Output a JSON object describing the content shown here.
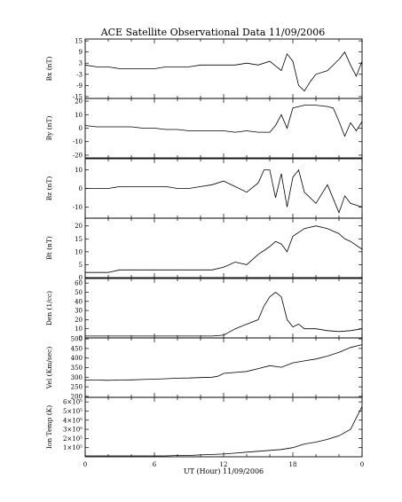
{
  "chart_data": {
    "type": "line",
    "title": "ACE Satellite Observational Data   11/09/2006",
    "xlabel": "UT (Hour)  11/09/2006",
    "x_ticks": [
      "0",
      "6",
      "12",
      "18",
      "0"
    ],
    "xlim": [
      0,
      24
    ],
    "grid": false,
    "panels": [
      {
        "name": "Bx (nT)",
        "ylabel": "Bx (nT)",
        "ylim": [
          -16,
          16
        ],
        "y_ticks": [
          15,
          9,
          3,
          -3,
          -9,
          -15
        ],
        "y_tick_labels": [
          "15",
          "9",
          "3",
          "-3",
          "-9",
          "-15"
        ],
        "x": [
          0,
          1,
          2,
          3,
          4,
          5,
          6,
          7,
          8,
          9,
          10,
          11,
          12,
          13,
          14,
          15,
          16,
          17,
          17.5,
          18,
          18.5,
          19,
          19.5,
          20,
          21,
          22,
          22.5,
          23,
          23.5,
          24
        ],
        "values": [
          2,
          1,
          1,
          0,
          0,
          0,
          0,
          1,
          1,
          1,
          2,
          2,
          2,
          2,
          3,
          2,
          4,
          -1,
          8,
          4,
          -9,
          -12,
          -7,
          -3,
          -1,
          5,
          9,
          2,
          -4,
          4
        ]
      },
      {
        "name": "By (nT)",
        "ylabel": "By (nT)",
        "ylim": [
          -22,
          22
        ],
        "y_ticks": [
          20,
          10,
          0,
          -10,
          -20
        ],
        "y_tick_labels": [
          "20",
          "10",
          "0",
          "-10",
          "-20"
        ],
        "x": [
          0,
          1,
          2,
          3,
          4,
          5,
          6,
          7,
          8,
          9,
          10,
          11,
          12,
          13,
          14,
          15,
          16,
          16.5,
          17,
          17.5,
          18,
          19,
          20,
          21,
          21.5,
          22,
          22.5,
          23,
          23.5,
          24
        ],
        "values": [
          2,
          1,
          1,
          1,
          1,
          0,
          0,
          -1,
          -1,
          -2,
          -2,
          -2,
          -2,
          -3,
          -2,
          -3,
          -3,
          2,
          10,
          0,
          15,
          17,
          17,
          16,
          15,
          5,
          -6,
          4,
          -2,
          5
        ]
      },
      {
        "name": "Bz (nT)",
        "ylabel": "Bz (nT)",
        "ylim": [
          -16,
          16
        ],
        "y_ticks": [
          10,
          0,
          -10
        ],
        "y_tick_labels": [
          "10",
          "0",
          "-10"
        ],
        "x": [
          0,
          1,
          2,
          3,
          4,
          5,
          6,
          7,
          8,
          9,
          10,
          11,
          12,
          13,
          14,
          15,
          15.5,
          16,
          16.5,
          17,
          17.5,
          18,
          18.5,
          19,
          20,
          21,
          22,
          22.5,
          23,
          24
        ],
        "values": [
          0,
          0,
          0,
          1,
          1,
          1,
          1,
          1,
          0,
          0,
          1,
          2,
          4,
          1,
          -2,
          3,
          10,
          10,
          -5,
          8,
          -10,
          6,
          10,
          -2,
          -8,
          2,
          -13,
          -4,
          -8,
          -10
        ]
      },
      {
        "name": "Bt (nT)",
        "ylabel": "Bt (nT)",
        "ylim": [
          0,
          23
        ],
        "y_ticks": [
          20,
          15,
          10,
          5,
          0
        ],
        "y_tick_labels": [
          "20",
          "15",
          "10",
          "5",
          "0"
        ],
        "x": [
          0,
          1,
          2,
          3,
          4,
          5,
          6,
          7,
          8,
          9,
          10,
          11,
          12,
          13,
          14,
          15,
          16,
          16.5,
          17,
          17.5,
          18,
          19,
          20,
          21,
          22,
          22.5,
          23,
          24
        ],
        "values": [
          2,
          2,
          2,
          3,
          3,
          3,
          3,
          3,
          3,
          3,
          3,
          3,
          4,
          6,
          5,
          9,
          12,
          14,
          13,
          10,
          16,
          19,
          20,
          19,
          17,
          15,
          14,
          11
        ]
      },
      {
        "name": "Den (1/cc)",
        "ylabel": "Den (1/cc)",
        "ylim": [
          0,
          65
        ],
        "y_ticks": [
          60,
          50,
          40,
          30,
          20,
          10,
          0
        ],
        "y_tick_labels": [
          "60",
          "50",
          "40",
          "30",
          "20",
          "10",
          "0"
        ],
        "x": [
          0,
          1,
          2,
          3,
          4,
          5,
          6,
          7,
          8,
          9,
          10,
          11,
          12,
          13,
          14,
          15,
          15.5,
          16,
          16.5,
          17,
          17.5,
          18,
          18.5,
          19,
          20,
          21,
          22,
          23,
          24
        ],
        "values": [
          2,
          2,
          2,
          2,
          2,
          2,
          2,
          2,
          2,
          2,
          2,
          2,
          3,
          10,
          15,
          20,
          35,
          45,
          50,
          45,
          20,
          12,
          15,
          10,
          10,
          8,
          7,
          8,
          10
        ]
      },
      {
        "name": "Vel (Km/sec)",
        "ylabel": "Vel (Km/sec)",
        "ylim": [
          195,
          505
        ],
        "y_ticks": [
          500,
          450,
          400,
          350,
          300,
          250,
          200
        ],
        "y_tick_labels": [
          "500",
          "450",
          "400",
          "350",
          "300",
          "250",
          "200"
        ],
        "x": [
          0,
          1,
          2,
          3,
          4,
          5,
          6,
          7,
          8,
          9,
          10,
          11,
          11.5,
          12,
          13,
          14,
          15,
          16,
          17,
          18,
          19,
          20,
          21,
          22,
          23,
          24
        ],
        "values": [
          285,
          285,
          284,
          285,
          286,
          288,
          290,
          292,
          295,
          296,
          298,
          300,
          305,
          320,
          325,
          330,
          345,
          360,
          352,
          375,
          385,
          395,
          410,
          430,
          455,
          470
        ]
      },
      {
        "name": "Ion Temp (K)",
        "ylabel": "Ion Temp (K)",
        "ylim": [
          0,
          650000
        ],
        "y_ticks": [
          600000,
          500000,
          400000,
          300000,
          200000,
          100000
        ],
        "y_tick_labels": [
          "6×10⁵",
          "5×10⁵",
          "4×10⁵",
          "3×10⁵",
          "2×10⁵",
          "1×10⁵"
        ],
        "x": [
          0,
          1,
          2,
          3,
          4,
          5,
          6,
          7,
          8,
          9,
          10,
          11,
          12,
          13,
          14,
          15,
          16,
          17,
          18,
          19,
          20,
          21,
          22,
          23,
          24
        ],
        "values": [
          10000,
          10000,
          10000,
          10000,
          10000,
          10000,
          10000,
          10000,
          15000,
          15000,
          20000,
          25000,
          30000,
          40000,
          50000,
          60000,
          70000,
          80000,
          100000,
          140000,
          160000,
          190000,
          230000,
          300000,
          550000
        ]
      }
    ]
  }
}
